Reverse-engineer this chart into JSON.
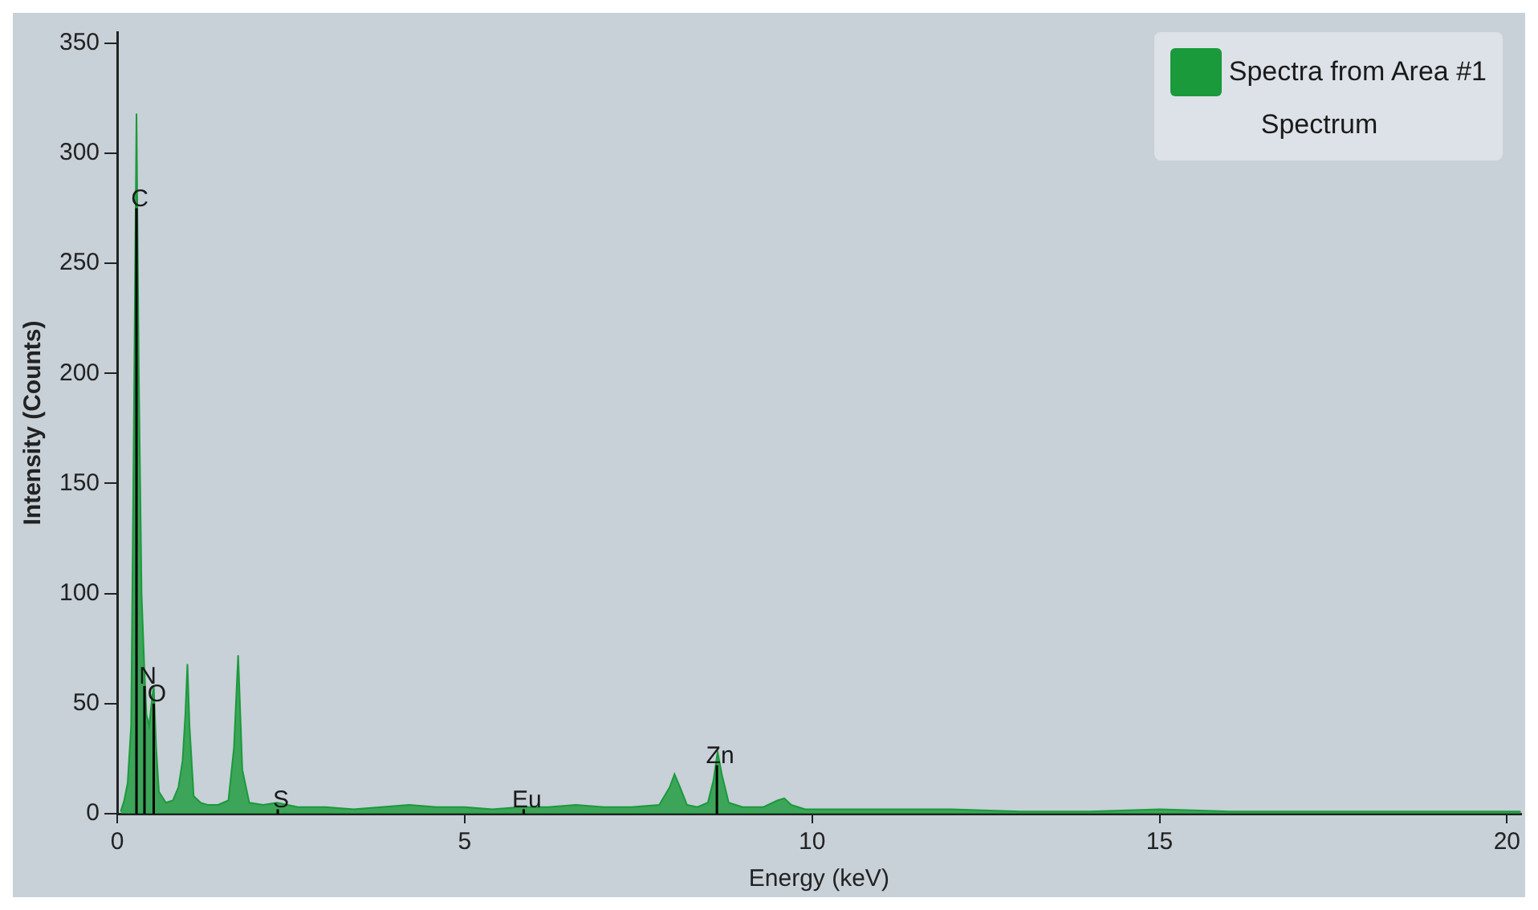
{
  "chart_data": {
    "type": "area",
    "xlabel": "Energy (keV)",
    "ylabel": "Intensity (Counts)",
    "legend": "top right",
    "legend_title": "Spectrum",
    "grid": false,
    "marker": "none",
    "xlim": [
      0,
      20.2
    ],
    "ylim": [
      0,
      355
    ],
    "xticks": [
      0,
      5,
      10,
      15,
      20
    ],
    "yticks": [
      0,
      50,
      100,
      150,
      200,
      250,
      300,
      350
    ],
    "series": [
      {
        "name": "Spectra from Area #1",
        "color": "#1a9a3a",
        "x": [
          0.05,
          0.1,
          0.15,
          0.2,
          0.24,
          0.277,
          0.31,
          0.35,
          0.39,
          0.42,
          0.46,
          0.5,
          0.525,
          0.56,
          0.6,
          0.7,
          0.8,
          0.88,
          0.94,
          0.98,
          1.01,
          1.04,
          1.1,
          1.2,
          1.3,
          1.45,
          1.6,
          1.68,
          1.74,
          1.8,
          1.9,
          2.1,
          2.3,
          2.6,
          3.0,
          3.4,
          3.8,
          4.2,
          4.6,
          5.0,
          5.4,
          5.8,
          6.2,
          6.6,
          7.0,
          7.4,
          7.8,
          7.95,
          8.02,
          8.1,
          8.2,
          8.35,
          8.5,
          8.58,
          8.64,
          8.7,
          8.8,
          9.0,
          9.3,
          9.5,
          9.6,
          9.7,
          9.9,
          10.3,
          11,
          12,
          13,
          14,
          15,
          16,
          17,
          18,
          19,
          20,
          20.2
        ],
        "values": [
          1,
          6,
          14,
          40,
          180,
          318,
          200,
          100,
          66,
          45,
          40,
          52,
          58,
          30,
          10,
          5,
          6,
          12,
          24,
          45,
          68,
          40,
          8,
          5,
          4,
          4,
          6,
          30,
          72,
          20,
          5,
          4,
          5,
          3,
          3,
          2,
          3,
          4,
          3,
          3,
          2,
          3,
          3,
          4,
          3,
          3,
          4,
          12,
          18,
          12,
          4,
          3,
          5,
          15,
          28,
          18,
          5,
          3,
          3,
          6,
          7,
          4,
          2,
          2,
          2,
          2,
          1,
          1,
          2,
          1,
          1,
          1,
          1,
          1,
          1
        ]
      }
    ],
    "annotations": [
      {
        "text": "C",
        "x": 0.277,
        "y": 275
      },
      {
        "text": "N",
        "x": 0.392,
        "y": 58
      },
      {
        "text": "O",
        "x": 0.525,
        "y": 50
      },
      {
        "text": "S",
        "x": 2.31,
        "y": 2
      },
      {
        "text": "Eu",
        "x": 5.85,
        "y": 2
      },
      {
        "text": "Zn",
        "x": 8.63,
        "y": 22
      }
    ]
  }
}
